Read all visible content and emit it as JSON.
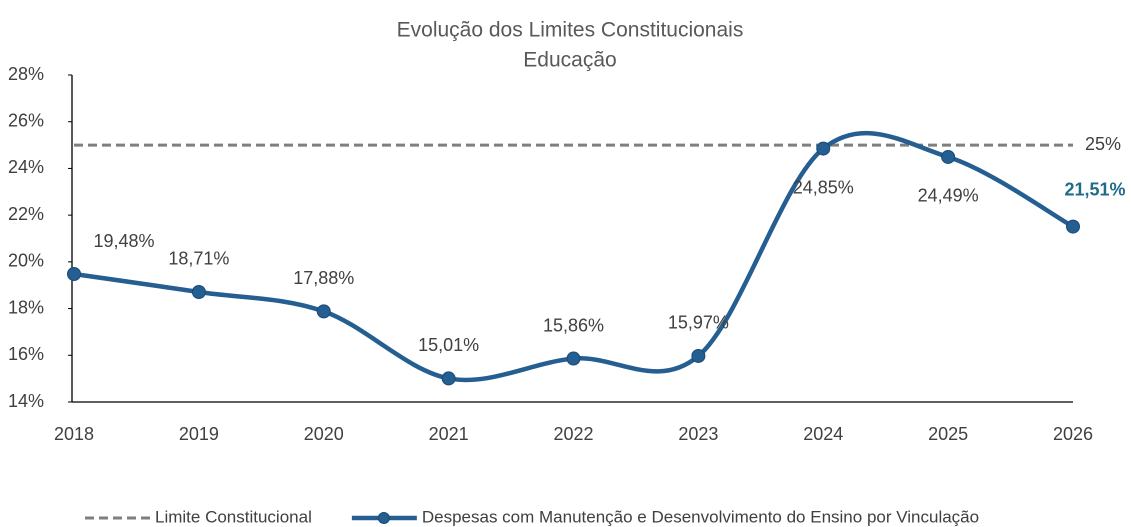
{
  "chart_data": {
    "type": "line",
    "title": "Evolução dos Limites Constitucionais",
    "subtitle": "Educação",
    "categories": [
      "2018",
      "2019",
      "2020",
      "2021",
      "2022",
      "2023",
      "2024",
      "2025",
      "2026"
    ],
    "series": [
      {
        "name": "Limite Constitucional",
        "color": "#7f7f7f",
        "dashed": true,
        "values": [
          25,
          25,
          25,
          25,
          25,
          25,
          25,
          25,
          25
        ],
        "value_labels": [
          null,
          null,
          null,
          null,
          null,
          null,
          null,
          null,
          "25%"
        ]
      },
      {
        "name": "Despesas com Manutenção e Desenvolvimento do Ensino por Vinculação",
        "color": "#255e91",
        "markers": true,
        "smooth": true,
        "values": [
          19.48,
          18.71,
          17.88,
          15.01,
          15.86,
          15.97,
          24.85,
          24.49,
          21.51
        ],
        "value_labels": [
          "19,48%",
          "18,71%",
          "17,88%",
          "15,01%",
          "15,86%",
          "15,97%",
          "24,85%",
          "24,49%",
          "21,51%"
        ]
      }
    ],
    "ylim": [
      14,
      28
    ],
    "yticks": [
      {
        "value": 14,
        "label": "14%"
      },
      {
        "value": 16,
        "label": "16%"
      },
      {
        "value": 18,
        "label": "18%"
      },
      {
        "value": 20,
        "label": "20%"
      },
      {
        "value": 22,
        "label": "22%"
      },
      {
        "value": 24,
        "label": "24%"
      },
      {
        "value": 26,
        "label": "26%"
      },
      {
        "value": 28,
        "label": "28%"
      }
    ],
    "grid": false,
    "legend": "bottom"
  }
}
